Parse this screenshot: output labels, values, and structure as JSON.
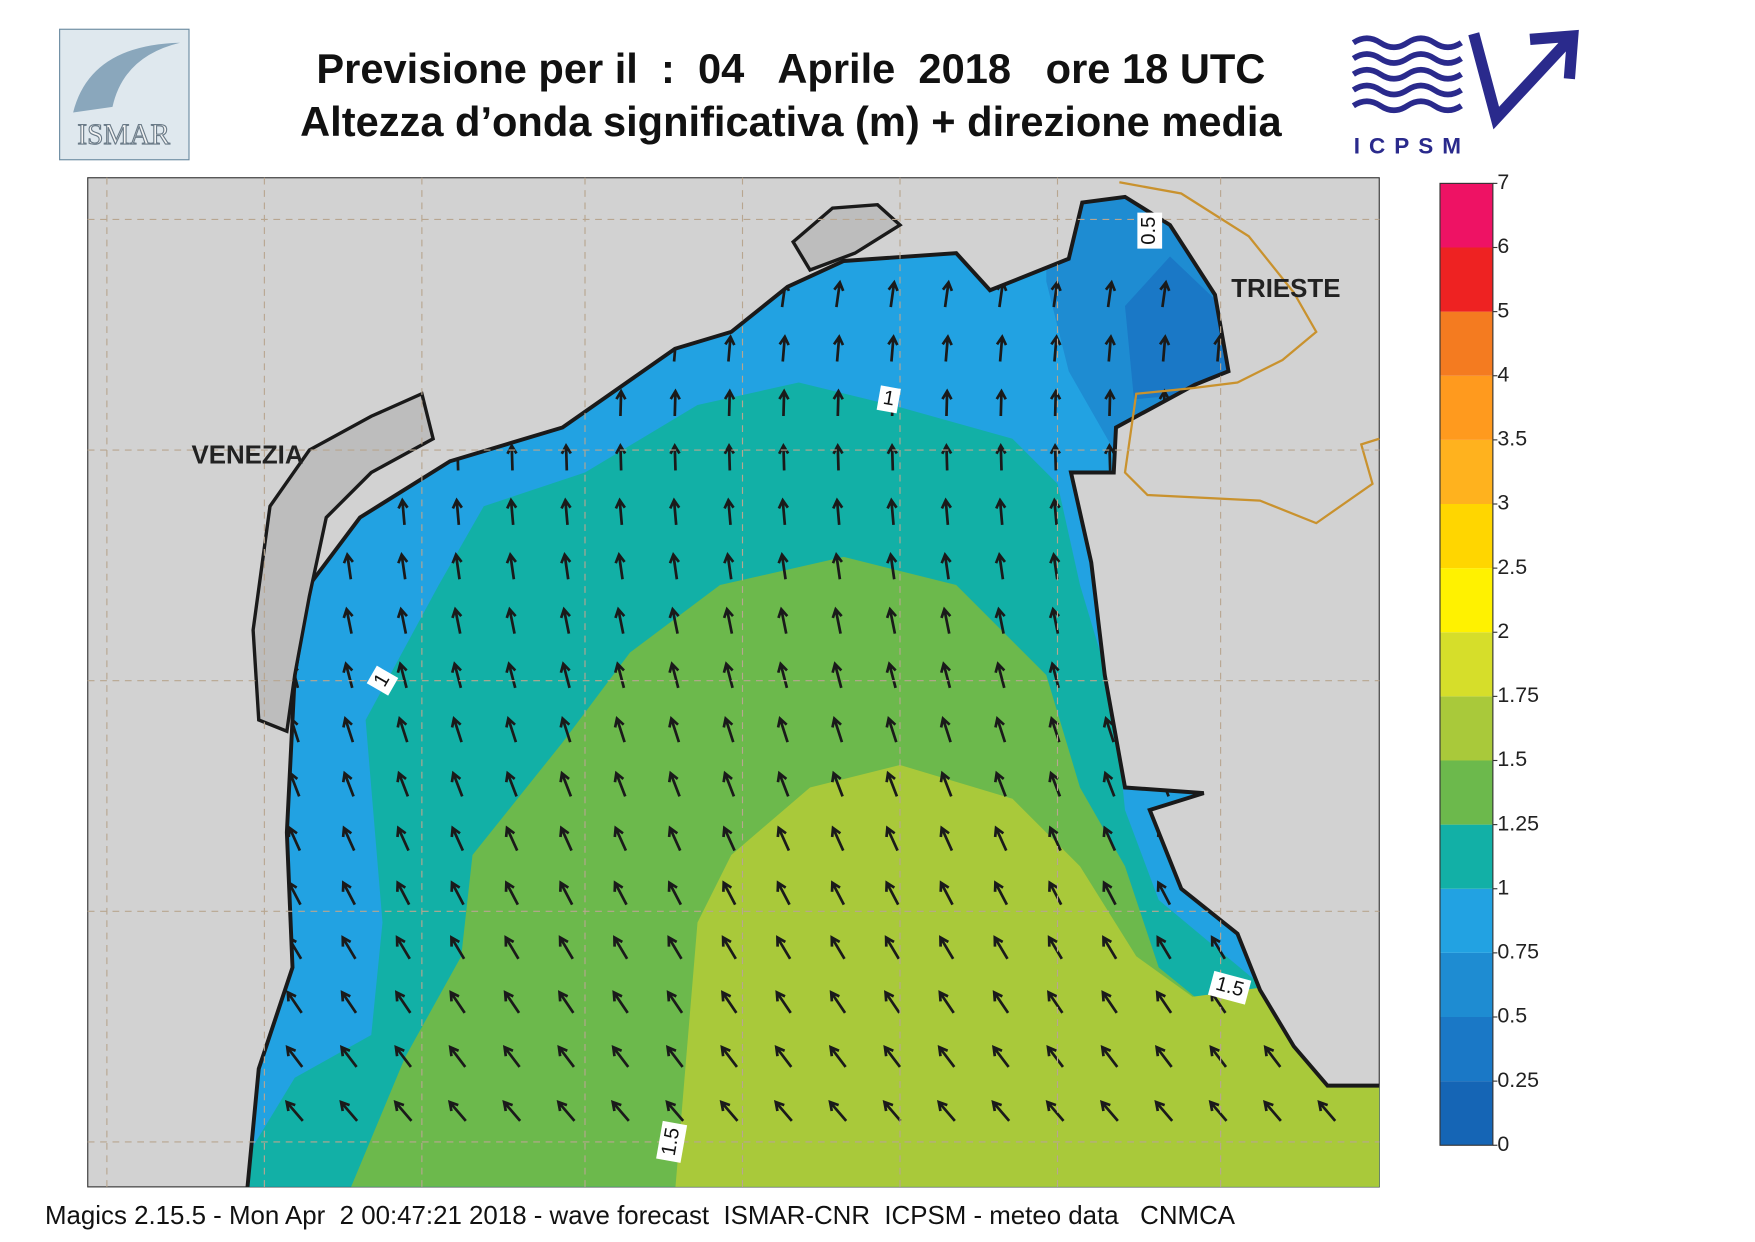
{
  "header": {
    "title_line1": "Previsione per il  :  04   Aprile  2018   ore 18 UTC",
    "title_line2": "Altezza d’onda significativa (m) + direzione media",
    "left_logo": "ISMAR",
    "right_logo": "ICPSM"
  },
  "map": {
    "places": [
      "VENEZIA",
      "TRIESTE"
    ],
    "contour_labels": [
      "0.5",
      "1",
      "1",
      "1.5",
      "1.5"
    ]
  },
  "colorbar": {
    "ticks": [
      0,
      0.25,
      0.5,
      0.75,
      1,
      1.25,
      1.5,
      1.75,
      2,
      2.5,
      3,
      3.5,
      4,
      5,
      6,
      7
    ],
    "colors": [
      "#1565b5",
      "#1a78c6",
      "#1e8cd2",
      "#22a2e2",
      "#12b0a6",
      "#6cb94c",
      "#a9c93a",
      "#d6de2a",
      "#fff200",
      "#ffd600",
      "#ffb21e",
      "#ff9a1e",
      "#f47b20",
      "#ee2222",
      "#ee1264"
    ]
  },
  "footer": "Magics 2.15.5 - Mon Apr  2 00:47:21 2018 - wave forecast  ISMAR-CNR  ICPSM - meteo data   CNMCA"
}
